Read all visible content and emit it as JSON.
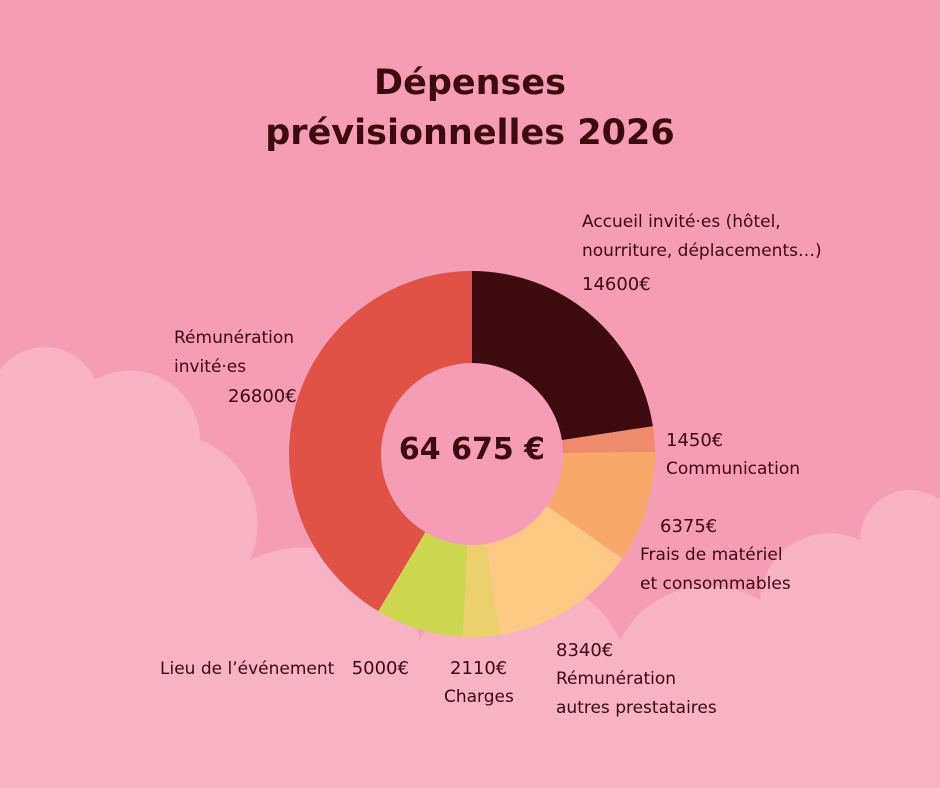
{
  "title_line1": "Dépenses",
  "title_line2": "prévisionnelles 2026",
  "colors": {
    "background": "#f59db5",
    "cloud": "#f7b2c4",
    "text": "#3d0a10"
  },
  "chart_data": {
    "type": "pie",
    "donut": true,
    "title": "Dépenses prévisionnelles 2026",
    "center_label": "64 675 €",
    "start": "top",
    "direction": "clockwise",
    "slices": [
      {
        "label_lines": [
          "Accueil invité·es (hôtel,",
          "nourriture, déplacements…)"
        ],
        "value": 14600,
        "value_label": "14600€",
        "color": "#3d0a10"
      },
      {
        "label_lines": [
          "Communication"
        ],
        "value": 1450,
        "value_label": "1450€",
        "color": "#ef8a6c"
      },
      {
        "label_lines": [
          "Frais de matériel",
          "et consommables"
        ],
        "value": 6375,
        "value_label": "6375€",
        "color": "#f7a96c"
      },
      {
        "label_lines": [
          "Rémunération",
          "autres prestataires"
        ],
        "value": 8340,
        "value_label": "8340€",
        "color": "#fdca86"
      },
      {
        "label_lines": [
          "Charges"
        ],
        "value": 2110,
        "value_label": "2110€",
        "color": "#ecd06c"
      },
      {
        "label_lines": [
          "Lieu de l’événement"
        ],
        "value": 5000,
        "value_label": "5000€",
        "color": "#ccd64f"
      },
      {
        "label_lines": [
          "Rémunération",
          "invité·es"
        ],
        "value": 26800,
        "value_label": "26800€",
        "color": "#e05246"
      }
    ]
  }
}
